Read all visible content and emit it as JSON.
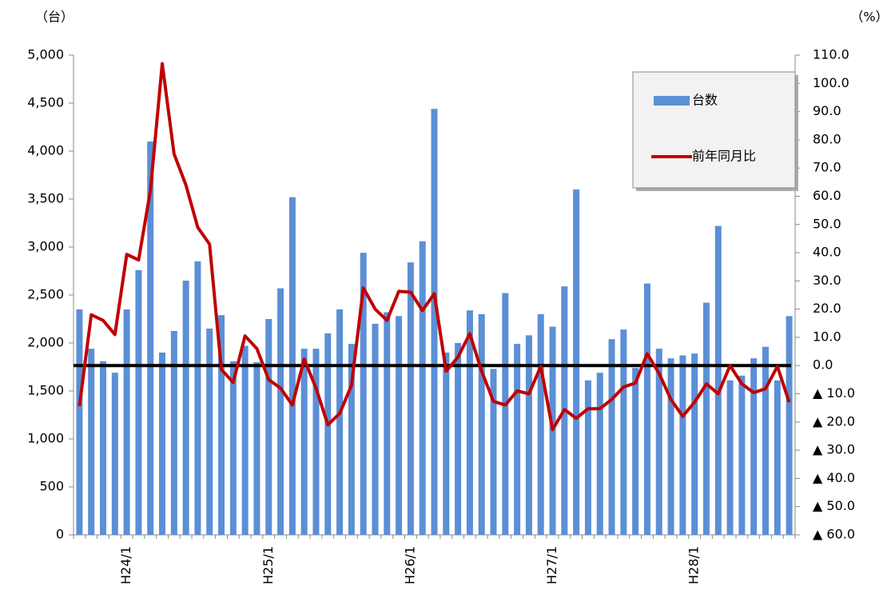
{
  "chart_data": {
    "type": "bar-line",
    "y_unit": "（台）",
    "y2_unit": "（%）",
    "categories": [
      null,
      null,
      null,
      null,
      "H24/1",
      null,
      null,
      null,
      null,
      null,
      null,
      null,
      null,
      null,
      null,
      null,
      "H25/1",
      null,
      null,
      null,
      null,
      null,
      null,
      null,
      null,
      null,
      null,
      null,
      "H26/1",
      null,
      null,
      null,
      null,
      null,
      null,
      null,
      null,
      null,
      null,
      null,
      "H27/1",
      null,
      null,
      null,
      null,
      null,
      null,
      null,
      null,
      null,
      null,
      null,
      "H28/1",
      null,
      null,
      null,
      null,
      null,
      null,
      null,
      null
    ],
    "series": [
      {
        "name": "台数",
        "type": "bar",
        "color": "#5b8fd6",
        "values": [
          2350,
          1940,
          1810,
          1690,
          2350,
          2760,
          4100,
          1900,
          2125,
          2650,
          2850,
          2150,
          2290,
          1810,
          1970,
          1800,
          2250,
          2570,
          3520,
          1940,
          1940,
          2100,
          2350,
          1990,
          2940,
          2200,
          2320,
          2280,
          2840,
          3060,
          4440,
          1900,
          2000,
          2340,
          2300,
          1730,
          2520,
          1990,
          2080,
          2300,
          2170,
          2590,
          3600,
          1610,
          1690,
          2040,
          2140,
          1740,
          2620,
          1940,
          1840,
          1870,
          1890,
          2420,
          3220,
          1610,
          1660,
          1840,
          1960,
          1610,
          2280
        ]
      },
      {
        "name": "前年同月比",
        "type": "line",
        "axis": "y2",
        "color": "#c00000",
        "values": [
          -14.4,
          18,
          16,
          11,
          39.4,
          37.4,
          62,
          107,
          75,
          64,
          49,
          43,
          -1.4,
          -6,
          10.5,
          6,
          -5,
          -8,
          -14,
          2.3,
          -8,
          -21,
          -17,
          -7,
          27.5,
          20,
          16,
          26.3,
          26,
          19.5,
          25.5,
          -2,
          3,
          11.3,
          -2,
          -12.7,
          -14,
          -9,
          -10,
          -0.3,
          -22.7,
          -15.6,
          -18.7,
          -15.3,
          -15.3,
          -12,
          -7.6,
          -6.2,
          4.2,
          -2.8,
          -12,
          -18,
          -13,
          -6.5,
          -10,
          0,
          -6.5,
          -9.6,
          -8.2,
          -0.3,
          -13
        ]
      }
    ],
    "ylim": [
      0,
      5000
    ],
    "yticks": [
      0,
      500,
      {
        "value": 1000,
        "label": "1,000"
      },
      {
        "value": 1500,
        "label": "1,500"
      },
      {
        "value": 2000,
        "label": "2,000"
      },
      {
        "value": 2500,
        "label": "2,500"
      },
      {
        "value": 3000,
        "label": "3,000"
      },
      {
        "value": 3500,
        "label": "3,500"
      },
      {
        "value": 4000,
        "label": "4,000"
      },
      {
        "value": 4500,
        "label": "4,500"
      },
      {
        "value": 5000,
        "label": "5,000"
      }
    ],
    "y2lim": [
      -60,
      110
    ],
    "y2ticks": [
      {
        "value": -60,
        "label": "▲ 60.0"
      },
      {
        "value": -50,
        "label": "▲ 50.0"
      },
      {
        "value": -40,
        "label": "▲ 40.0"
      },
      {
        "value": -30,
        "label": "▲ 30.0"
      },
      {
        "value": -20,
        "label": "▲ 20.0"
      },
      {
        "value": -10,
        "label": "▲ 10.0"
      },
      {
        "value": 0,
        "label": "0.0"
      },
      {
        "value": 10,
        "label": "10.0"
      },
      {
        "value": 20,
        "label": "20.0"
      },
      {
        "value": 30,
        "label": "30.0"
      },
      {
        "value": 40,
        "label": "40.0"
      },
      {
        "value": 50,
        "label": "50.0"
      },
      {
        "value": 60,
        "label": "60.0"
      },
      {
        "value": 70,
        "label": "70.0"
      },
      {
        "value": 80,
        "label": "80.0"
      },
      {
        "value": 90,
        "label": "90.0"
      },
      {
        "value": 100,
        "label": "100.0"
      },
      {
        "value": 110,
        "label": "110.0"
      }
    ],
    "zero_line_y2": 0,
    "legend": "top-right"
  }
}
